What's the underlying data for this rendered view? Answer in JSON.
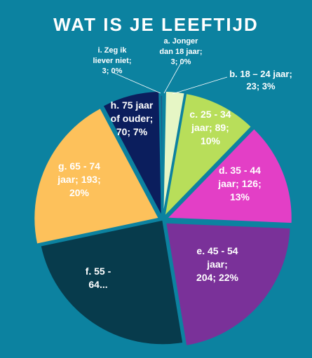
{
  "chart_data": {
    "type": "pie",
    "title": "WAT IS JE LEEFTIJD",
    "slices": [
      {
        "category": "a. Jonger dan 18 jaar",
        "value": 3,
        "percent": "0%",
        "label_lines": [
          "a. Jonger",
          "dan 18 jaar;",
          "3; 0%"
        ],
        "color": "#0C82A0"
      },
      {
        "category": "b. 18 – 24 jaar",
        "value": 23,
        "percent": "3%",
        "label_lines": [
          "b. 18 – 24 jaar;",
          "23; 3%"
        ],
        "color": "#E6F6C5"
      },
      {
        "category": "c. 25 - 34 jaar",
        "value": 89,
        "percent": "10%",
        "label_lines": [
          "c. 25 - 34",
          "jaar; 89;",
          "10%"
        ],
        "color": "#B8DE5A"
      },
      {
        "category": "d. 35 - 44 jaar",
        "value": 126,
        "percent": "13%",
        "label_lines": [
          "d. 35 - 44",
          "jaar; 126;",
          "13%"
        ],
        "color": "#E33FC6"
      },
      {
        "category": "e. 45 - 54 jaar",
        "value": 204,
        "percent": "22%",
        "label_lines": [
          "e. 45 - 54",
          "jaar;",
          "204; 22%"
        ],
        "color": "#7A3199"
      },
      {
        "category": "f. 55 - 64...",
        "value": 228,
        "percent": "",
        "label_lines": [
          "f. 55 -",
          "64..."
        ],
        "color": "#073B4C"
      },
      {
        "category": "g. 65 - 74 jaar",
        "value": 193,
        "percent": "20%",
        "label_lines": [
          "g. 65 - 74",
          "jaar; 193;",
          "20%"
        ],
        "color": "#FDC15B"
      },
      {
        "category": "h. 75 jaar of ouder",
        "value": 70,
        "percent": "7%",
        "label_lines": [
          "h. 75 jaar",
          "of ouder;",
          "70; 7%"
        ],
        "color": "#0B1E5D"
      },
      {
        "category": "i. Zeg ik liever niet",
        "value": 3,
        "percent": "0%",
        "label_lines": [
          "i. Zeg ik",
          "liever niet;",
          "3; 0%"
        ],
        "color": "#1C5F8A"
      }
    ]
  }
}
